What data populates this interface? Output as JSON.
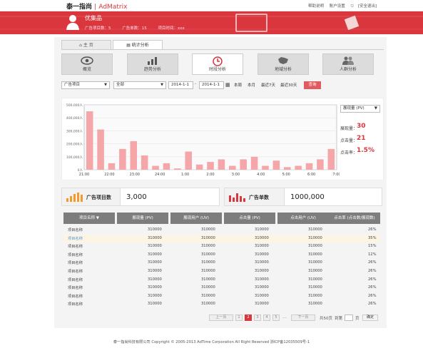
{
  "header": {
    "logo_cn": "泰一指尚",
    "logo_sep": "|",
    "logo_en": "AdMatrix",
    "links": [
      "帮助说明",
      "账户设置",
      "[安全退出]"
    ]
  },
  "user": {
    "name": "优集品",
    "info": [
      "广告项目数：5",
      "广告单数：15",
      "项目时间：xxx"
    ]
  },
  "tabs": [
    {
      "label": "主 页"
    },
    {
      "label": "统计分析"
    }
  ],
  "nav": [
    {
      "label": "概览",
      "icon": "eye-icon"
    },
    {
      "label": "趋势分析",
      "icon": "bar-trend-icon"
    },
    {
      "label": "时段分析",
      "icon": "clock-icon"
    },
    {
      "label": "地域分析",
      "icon": "map-icon"
    },
    {
      "label": "人群分析",
      "icon": "people-icon"
    }
  ],
  "filters": {
    "project": "广告项目",
    "scope": "全部",
    "date_from": "2014-1-1",
    "date_to": "2014-1-1",
    "range_sep": "-",
    "quick": [
      "本周",
      "本月",
      "最近7天",
      "最近30天"
    ],
    "query_label": "查询"
  },
  "chart_data": {
    "type": "bar",
    "x_ticks": [
      "21:00",
      "22:00",
      "23:00",
      "24:00",
      "1:00",
      "2:00",
      "3:00",
      "4:00",
      "5:00",
      "6:00",
      "7:00"
    ],
    "y_ticks": [
      "500,000人",
      "400,000人",
      "300,000人",
      "200,000人",
      "100,000人",
      "0人"
    ],
    "ylim": [
      0,
      500000
    ],
    "values": [
      450000,
      310000,
      50000,
      160000,
      220000,
      110000,
      30000,
      50000,
      10000,
      140000,
      40000,
      60000,
      80000,
      30000,
      80000,
      100000,
      30000,
      70000,
      20000,
      30000,
      50000,
      80000,
      160000
    ],
    "color": "#f4a6a8"
  },
  "side": {
    "metric": "展现量 (PV)",
    "stats": [
      {
        "label": "展现量：",
        "value": "30"
      },
      {
        "label": "点击量：",
        "value": "21"
      },
      {
        "label": "点击率：",
        "value": "1.5%"
      }
    ]
  },
  "cards": [
    {
      "label": "广告项目数",
      "value": "3,000"
    },
    {
      "label": "广告单数",
      "value": "1000,000"
    }
  ],
  "table": {
    "headers": [
      "项目名称 ▼",
      "展现量 (PV)",
      "展现用户 (UV)",
      "点击量 (PV)",
      "点击用户 (UV)",
      "点击率 (点击数/展现数)"
    ],
    "rows": [
      [
        "项目名称",
        "310000",
        "310000",
        "310000",
        "310000",
        "26%"
      ],
      [
        "项目名称",
        "310000",
        "310000",
        "310000",
        "310000",
        "35%"
      ],
      [
        "项目名称",
        "310000",
        "310000",
        "310000",
        "310000",
        "15%"
      ],
      [
        "项目名称",
        "310000",
        "310000",
        "310000",
        "310000",
        "12%"
      ],
      [
        "项目名称",
        "310000",
        "310000",
        "310000",
        "310000",
        "26%"
      ],
      [
        "项目名称",
        "310000",
        "310000",
        "310000",
        "310000",
        "26%"
      ],
      [
        "项目名称",
        "310000",
        "310000",
        "310000",
        "310000",
        "26%"
      ],
      [
        "项目名称",
        "310000",
        "310000",
        "310000",
        "310000",
        "26%"
      ],
      [
        "项目名称",
        "310000",
        "310000",
        "310000",
        "310000",
        "26%"
      ],
      [
        "项目名称",
        "310000",
        "310000",
        "310000",
        "310000",
        "26%"
      ]
    ]
  },
  "pagination": {
    "prev": "上一页",
    "pages": [
      "1",
      "2",
      "3",
      "4",
      "5"
    ],
    "ellipsis": "...",
    "next": "下一页",
    "total": "共50页",
    "goto": "到第",
    "page_unit": "页",
    "confirm": "确定"
  },
  "footer": "泰一指尚科技有限公司 Copyright © 2005-2013 AdTime Corporation All Right Reserved 浙ICP备12035509号-1"
}
